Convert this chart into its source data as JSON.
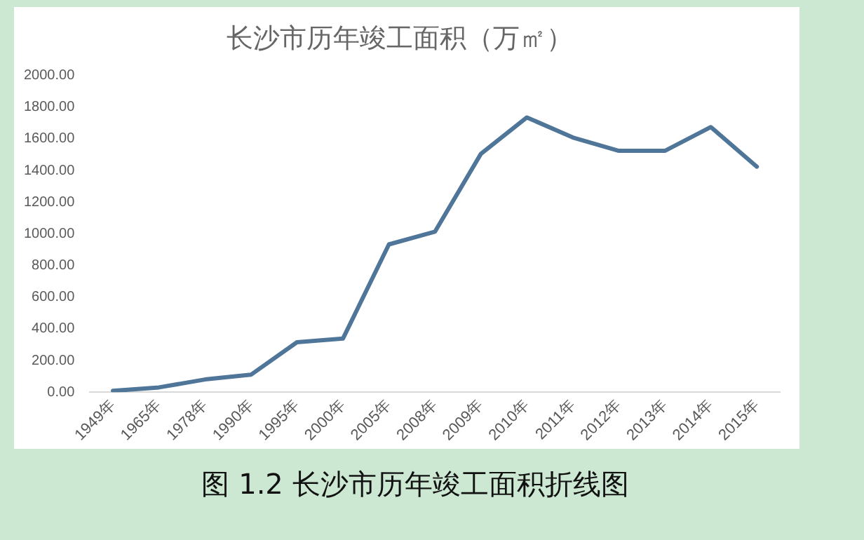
{
  "chart_data": {
    "type": "line",
    "title": "长沙市历年竣工面积（万㎡）",
    "categories": [
      "1949年",
      "1965年",
      "1978年",
      "1990年",
      "1995年",
      "2000年",
      "2005年",
      "2008年",
      "2009年",
      "2010年",
      "2011年",
      "2012年",
      "2013年",
      "2014年",
      "2015年"
    ],
    "series": [
      {
        "color": "#4f7699",
        "values": [
          8,
          30,
          80,
          110,
          315,
          338,
          933,
          1013,
          1505,
          1735,
          1608,
          1524,
          1524,
          1674,
          1424
        ]
      }
    ],
    "ylim": [
      0,
      2000
    ],
    "yticks": [
      {
        "value": 0,
        "label": "0.00"
      },
      {
        "value": 200,
        "label": "200.00"
      },
      {
        "value": 400,
        "label": "400.00"
      },
      {
        "value": 600,
        "label": "600.00"
      },
      {
        "value": 800,
        "label": "800.00"
      },
      {
        "value": 1000,
        "label": "1000.00"
      },
      {
        "value": 1200,
        "label": "1200.00"
      },
      {
        "value": 1400,
        "label": "1400.00"
      },
      {
        "value": 1600,
        "label": "1600.00"
      },
      {
        "value": 1800,
        "label": "1800.00"
      },
      {
        "value": 2000,
        "label": "2000.00"
      }
    ],
    "grid": false,
    "legend": false,
    "marker": "none",
    "line_style": "solid",
    "annotations": [
      "图 1.2 长沙市历年竣工面积折线图"
    ]
  }
}
